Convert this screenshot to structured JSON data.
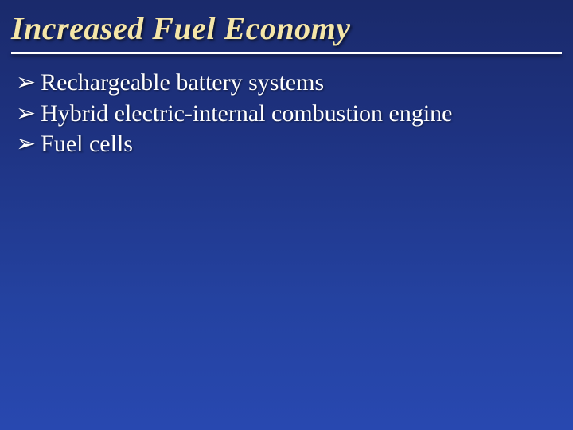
{
  "slide": {
    "title": "Increased Fuel Economy",
    "title_color": "#f5e6a8",
    "title_fontsize": 40,
    "title_style": "italic bold",
    "divider_color": "#ffffff",
    "background_gradient": [
      "#1a2a6b",
      "#2848b0"
    ],
    "bullet_marker": "➢",
    "bullet_color": "#ffffff",
    "bullet_fontsize": 30,
    "bullets": [
      {
        "text": "Rechargeable battery systems"
      },
      {
        "text": "Hybrid electric-internal combustion engine"
      },
      {
        "text": "Fuel cells"
      }
    ]
  }
}
